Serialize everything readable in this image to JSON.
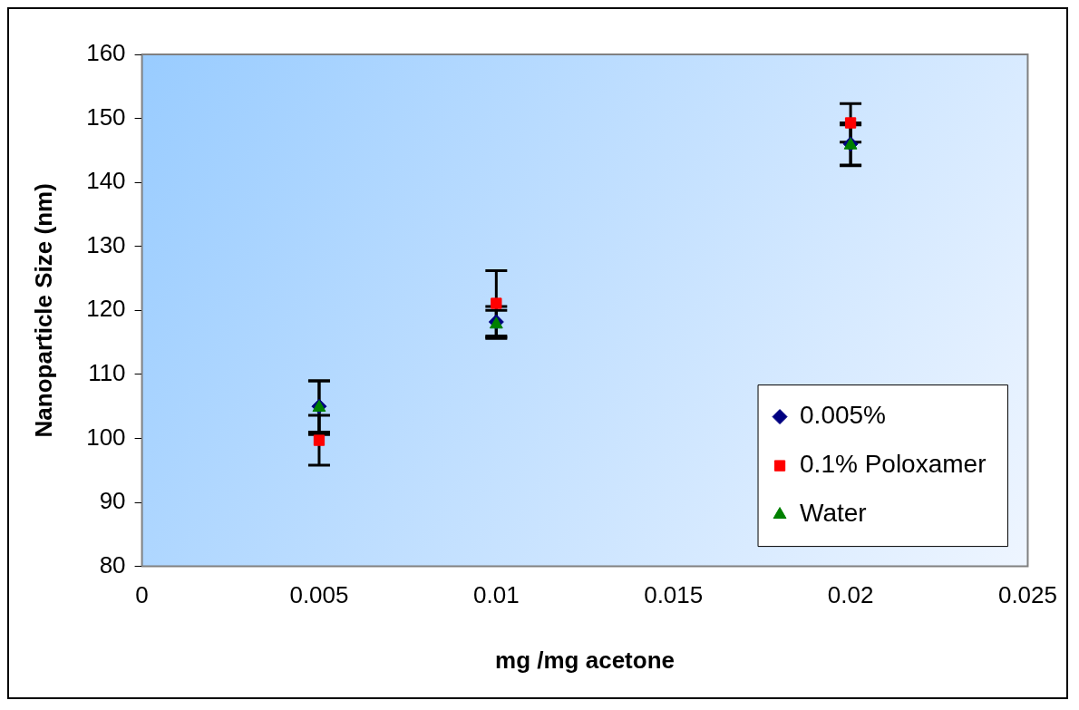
{
  "chart_data": {
    "type": "scatter",
    "xlabel": "mg /mg acetone",
    "ylabel": "Nanoparticle Size (nm)",
    "xlim": [
      0,
      0.025
    ],
    "xticks": [
      0,
      0.005,
      0.01,
      0.015,
      0.02,
      0.025
    ],
    "ylim": [
      80,
      160
    ],
    "yticks": [
      80,
      90,
      100,
      110,
      120,
      130,
      140,
      150,
      160
    ],
    "grid": false,
    "legend": "bottom right",
    "series": [
      {
        "name": "0.005%",
        "color": "#000080",
        "marker": "diamond",
        "x": [
          0.005,
          0.01,
          0.02
        ],
        "values": [
          105,
          118.2,
          146
        ],
        "errors": [
          4,
          2.4,
          3.3
        ]
      },
      {
        "name": "0.1% Poloxamer",
        "color": "#ff0000",
        "marker": "square",
        "x": [
          0.005,
          0.01,
          0.02
        ],
        "values": [
          99.7,
          121.1,
          149.3
        ],
        "errors": [
          3.9,
          5.1,
          3
        ]
      },
      {
        "name": "Water",
        "color": "#008000",
        "marker": "triangle",
        "x": [
          0.005,
          0.01,
          0.02
        ],
        "values": [
          104.8,
          117.8,
          145.8
        ],
        "errors": [
          4.2,
          2.2,
          3.2
        ]
      }
    ]
  }
}
